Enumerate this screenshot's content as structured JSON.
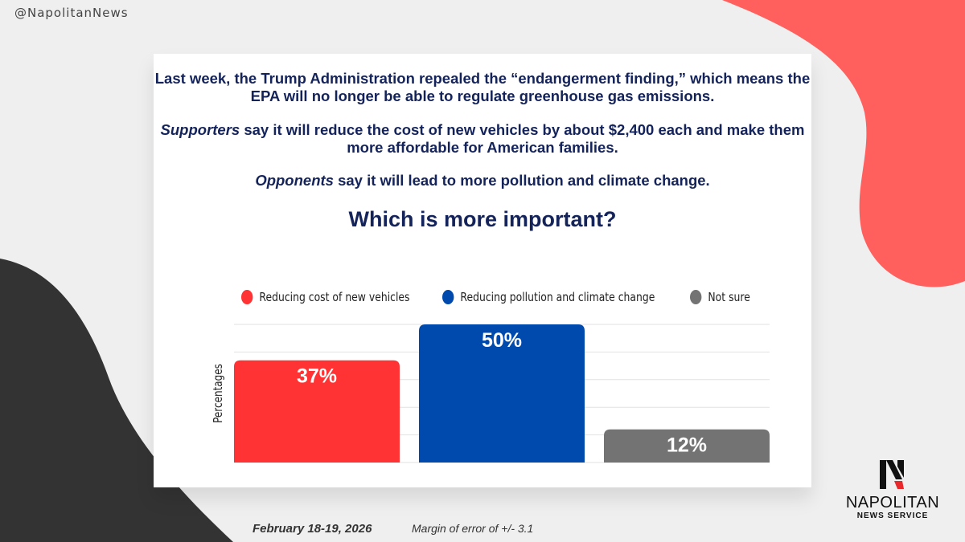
{
  "handle": "@NapolitanNews",
  "intro": {
    "p1": "Last week, the Trump Administration repealed the “endangerment finding,” which means the EPA will no longer be able to regulate greenhouse gas emissions.",
    "p2_lead": "Supporters",
    "p2_rest": " say it will reduce the cost of new vehicles by about $2,400 each and make them more affordable for American families.",
    "p3_lead": "Opponents",
    "p3_rest": " say it will lead to more pollution and climate change."
  },
  "question": "Which is more important?",
  "chart_data": {
    "type": "bar",
    "title": "Which is more important?",
    "ylabel": "Percentages",
    "xlabel": "",
    "ylim": [
      0,
      50
    ],
    "grid": true,
    "legend_position": "top",
    "categories": [
      "Reducing cost of new vehicles",
      "Reducing pollution and climate change",
      "Not sure"
    ],
    "values": [
      37,
      50,
      12
    ],
    "value_labels": [
      "37%",
      "50%",
      "12%"
    ],
    "colors": [
      "#ff3333",
      "#004aad",
      "#737373"
    ]
  },
  "footer": {
    "date": "February 18-19, 2026",
    "margin": "Margin of error of +/- 3.1"
  },
  "logo": {
    "name": "NAPOLITAN",
    "sub": "NEWS SERVICE"
  },
  "colors": {
    "navy": "#14235a",
    "coral": "#ff5f5d",
    "charcoal": "#333333"
  }
}
